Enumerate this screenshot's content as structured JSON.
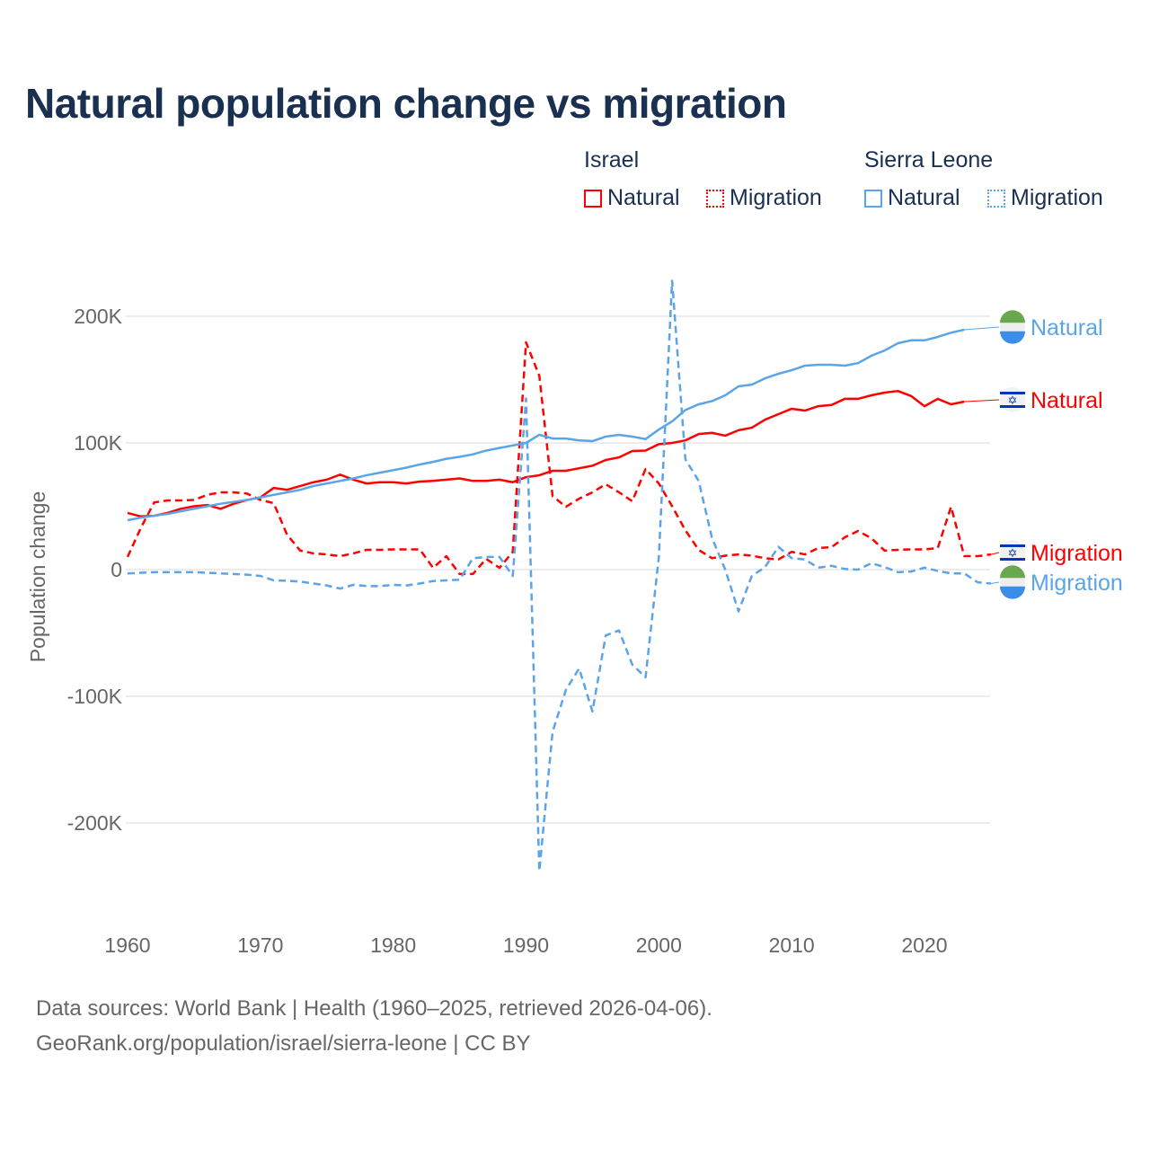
{
  "title": "Natural population change vs migration",
  "legend": {
    "groups": [
      {
        "name": "Israel",
        "items": [
          {
            "label": "Natural",
            "style": "solid"
          },
          {
            "label": "Migration",
            "style": "dotted"
          }
        ],
        "color": "#ff0000"
      },
      {
        "name": "Sierra Leone",
        "items": [
          {
            "label": "Natural",
            "style": "solid"
          },
          {
            "label": "Migration",
            "style": "dotted"
          }
        ],
        "color": "#5ba4e8"
      }
    ]
  },
  "source_lines": [
    "Data sources: World Bank | Health (1960–2025, retrieved 2026-04-06).",
    "GeoRank.org/population/israel/sierra-leone | CC BY"
  ],
  "chart_data": {
    "type": "line",
    "title": "Natural population change vs migration",
    "xlabel": "",
    "ylabel": "Population change",
    "xlim": [
      1960,
      2025
    ],
    "ylim": [
      -260000,
      240000
    ],
    "xticks": [
      1960,
      1970,
      1980,
      1990,
      2000,
      2010,
      2020
    ],
    "yticks": [
      {
        "v": -200000,
        "label": "-200K"
      },
      {
        "v": -100000,
        "label": "-100K"
      },
      {
        "v": 0,
        "label": "0"
      },
      {
        "v": 100000,
        "label": "100K"
      },
      {
        "v": 200000,
        "label": "200K"
      }
    ],
    "grid": true,
    "series": [
      {
        "name": "Israel Natural",
        "end_label": "Natural",
        "country": "israel",
        "color": "#ff0000",
        "dash": false,
        "start": 1960,
        "values_k": [
          44.7,
          42,
          42.5,
          44.7,
          48,
          50,
          51,
          48,
          52,
          55,
          57,
          64.5,
          63,
          66,
          69,
          71,
          75,
          71,
          68,
          69,
          69,
          68,
          69.5,
          70,
          71,
          72,
          70,
          70,
          71,
          69,
          73,
          74.5,
          78,
          78,
          80,
          82,
          86.5,
          88.6,
          93.6,
          94,
          99,
          100,
          102,
          107,
          108,
          105.7,
          110,
          112,
          118.4,
          122.7,
          127,
          125.5,
          129,
          130,
          134.8,
          134.8,
          137.6,
          139.7,
          141,
          137,
          129,
          134.8,
          130.5,
          132.6
        ]
      },
      {
        "name": "Israel Migration",
        "end_label": "Migration",
        "country": "israel",
        "color": "#ff0000",
        "dash": true,
        "start": 1960,
        "values_k": [
          10,
          33,
          53,
          54.6,
          54.6,
          55,
          59,
          61,
          61,
          60,
          55,
          52.5,
          27.7,
          15,
          12.8,
          12,
          10.6,
          12.8,
          15.6,
          15.6,
          16,
          16,
          16,
          1.4,
          10.6,
          -3.5,
          -3.5,
          8.5,
          1.4,
          14,
          179.4,
          153,
          58,
          49.6,
          56,
          61,
          67.4,
          61,
          54,
          79.4,
          68,
          50,
          31,
          15.6,
          9,
          11,
          12,
          11,
          9,
          8,
          14,
          12,
          17,
          17.7,
          25.5,
          30.5,
          24.8,
          15,
          15.6,
          16,
          16,
          17,
          49.6,
          10.6,
          10.6,
          12
        ]
      },
      {
        "name": "Sierra Leone Natural",
        "end_label": "Natural",
        "country": "sierra-leone",
        "color": "#5ba4e8",
        "dash": false,
        "start": 1960,
        "values_k": [
          39,
          41,
          42.5,
          44,
          46,
          48,
          50,
          52,
          53.5,
          55,
          57,
          59,
          61,
          63,
          66,
          68,
          70,
          72,
          74.5,
          76.5,
          78.5,
          80.5,
          83,
          85,
          87.5,
          89,
          91,
          94,
          96,
          98,
          100,
          106.4,
          103.5,
          103.5,
          102,
          101.4,
          105,
          106.4,
          105,
          103,
          110.6,
          117,
          126,
          130.5,
          133,
          137.6,
          144.7,
          146,
          151,
          154.6,
          157.4,
          161,
          161.7,
          161.7,
          161,
          163,
          168.8,
          173,
          178.7,
          181,
          181,
          183.7,
          187,
          189.4
        ]
      },
      {
        "name": "Sierra Leone Migration",
        "end_label": "Migration",
        "country": "sierra-leone",
        "color": "#5ba4e8",
        "dash": true,
        "start": 1960,
        "values_k": [
          -3,
          -2.5,
          -2,
          -2,
          -2,
          -2,
          -2.5,
          -3,
          -3.5,
          -4,
          -5,
          -8.5,
          -8.8,
          -9.5,
          -11,
          -12.5,
          -15,
          -12,
          -13,
          -13,
          -12,
          -12.5,
          -11,
          -9,
          -8.5,
          -8,
          9,
          10,
          10,
          -5,
          135,
          -238,
          -128,
          -95,
          -78,
          -112,
          -52,
          -48,
          -75,
          -85,
          10,
          228,
          87,
          70,
          25,
          0,
          -33,
          -5,
          2,
          18,
          9,
          8,
          1.5,
          3,
          0.5,
          0,
          5,
          2,
          -2,
          -1.5,
          1.5,
          -1,
          -3,
          -3,
          -10,
          -11
        ]
      }
    ]
  }
}
